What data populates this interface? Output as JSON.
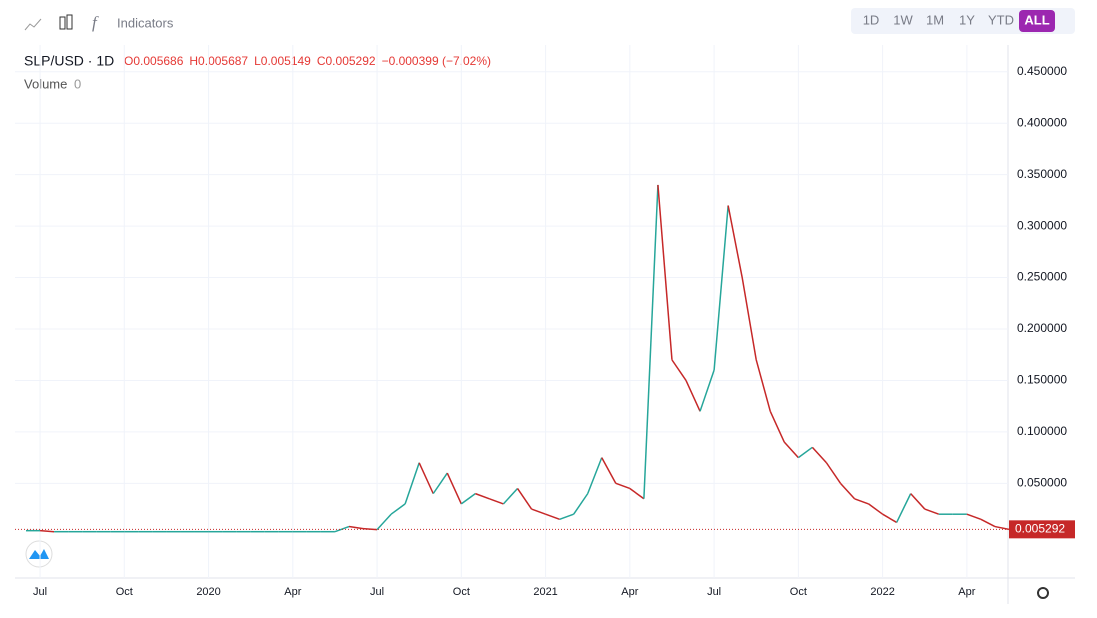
{
  "toolbar": {
    "indicators": "Indicators",
    "ranges": [
      "1D",
      "1W",
      "1M",
      "1Y",
      "YTD",
      "ALL"
    ],
    "active_range": "ALL"
  },
  "legend": {
    "symbol": "SLP/USD · 1D",
    "ohlc": [
      "O0.005686",
      "H0.005687",
      "L0.005149",
      "C0.005292",
      "−0.000399 (−7.02%)"
    ],
    "volume_label": "Volume",
    "volume_value": "0"
  },
  "chart_data": {
    "type": "line",
    "up_color": "#26a69a",
    "down_color": "#c62828",
    "categories": [
      null,
      "Jul",
      null,
      null,
      null,
      null,
      null,
      "Oct",
      null,
      null,
      null,
      null,
      null,
      "2020",
      null,
      null,
      null,
      null,
      null,
      "Apr",
      null,
      null,
      null,
      null,
      null,
      "Jul",
      null,
      null,
      null,
      null,
      null,
      "Oct",
      null,
      null,
      null,
      null,
      null,
      "2021",
      null,
      null,
      null,
      null,
      null,
      "Apr",
      null,
      null,
      null,
      null,
      null,
      "Jul",
      null,
      null,
      null,
      null,
      null,
      "Oct",
      null,
      null,
      null,
      null,
      null,
      "2022",
      null,
      null,
      null,
      null,
      null,
      "Apr",
      null,
      null,
      null
    ],
    "series": [
      {
        "name": "SLP/USD",
        "values": [
          0.004,
          0.004,
          0.003,
          0.003,
          0.003,
          0.003,
          0.003,
          0.003,
          0.003,
          0.003,
          0.003,
          0.003,
          0.003,
          0.003,
          0.003,
          0.003,
          0.003,
          0.003,
          0.003,
          0.003,
          0.003,
          0.003,
          0.003,
          0.008,
          0.006,
          0.005,
          0.02,
          0.03,
          0.07,
          0.04,
          0.06,
          0.03,
          0.04,
          0.035,
          0.03,
          0.045,
          0.025,
          0.02,
          0.015,
          0.02,
          0.04,
          0.075,
          0.05,
          0.045,
          0.035,
          0.34,
          0.17,
          0.15,
          0.12,
          0.16,
          0.32,
          0.25,
          0.17,
          0.12,
          0.09,
          0.075,
          0.085,
          0.07,
          0.05,
          0.035,
          0.03,
          0.02,
          0.012,
          0.04,
          0.025,
          0.02,
          0.02,
          0.02,
          0.015,
          0.008,
          0.005292
        ]
      }
    ],
    "last_price": 0.005292,
    "ylim": [
      -0.042,
      0.476
    ],
    "yticks": [
      {
        "value": 0.05,
        "label": "0.050000"
      },
      {
        "value": 0.1,
        "label": "0.100000"
      },
      {
        "value": 0.15,
        "label": "0.150000"
      },
      {
        "value": 0.2,
        "label": "0.200000"
      },
      {
        "value": 0.25,
        "label": "0.250000"
      },
      {
        "value": 0.3,
        "label": "0.300000"
      },
      {
        "value": 0.35,
        "label": "0.350000"
      },
      {
        "value": 0.4,
        "label": "0.400000"
      },
      {
        "value": 0.45,
        "label": "0.450000"
      }
    ],
    "grid": true
  }
}
